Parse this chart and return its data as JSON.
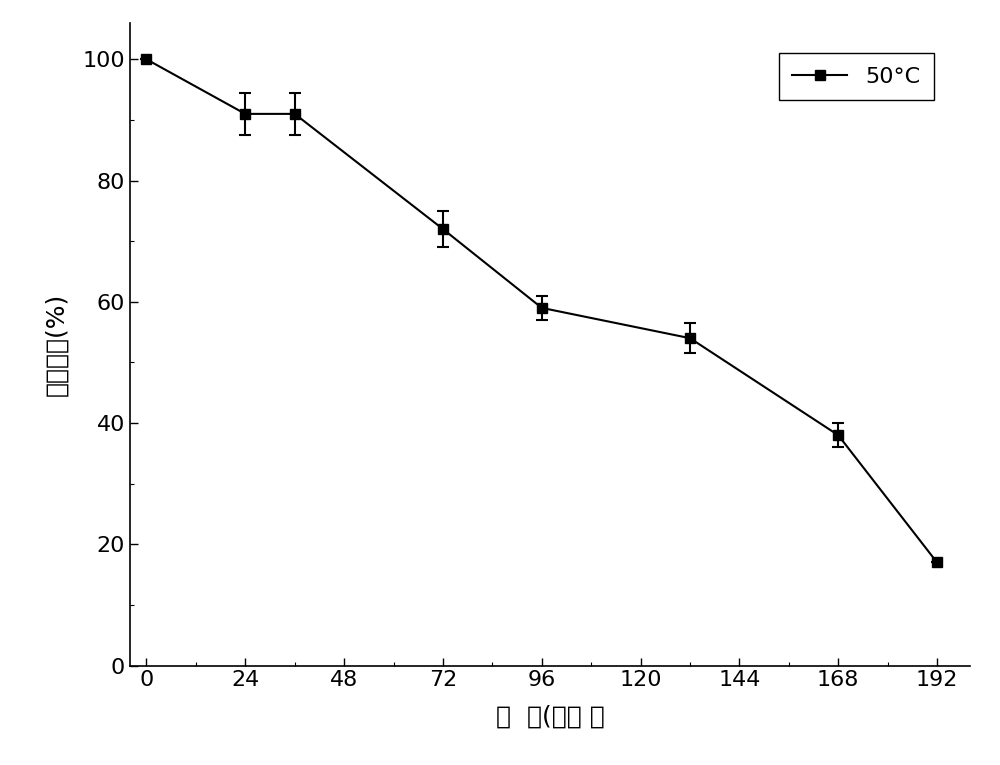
{
  "x": [
    0,
    24,
    36,
    72,
    96,
    132,
    168,
    192
  ],
  "y": [
    100,
    91,
    91,
    72,
    59,
    54,
    38,
    17
  ],
  "yerr": [
    0,
    3.5,
    3.5,
    3.0,
    2.0,
    2.5,
    2.0,
    0
  ],
  "color": "#000000",
  "marker": "s",
  "marker_size": 7,
  "line_style": "-",
  "line_width": 1.5,
  "xlabel": "时  间(小时 ）",
  "ylabel": "相对活性(%)",
  "legend_label": "50°C",
  "xlim": [
    -4,
    200
  ],
  "ylim": [
    0,
    106
  ],
  "xticks": [
    0,
    24,
    48,
    72,
    96,
    120,
    144,
    168,
    192
  ],
  "yticks": [
    0,
    20,
    40,
    60,
    80,
    100
  ],
  "background_color": "#ffffff",
  "label_fontsize": 18,
  "tick_fontsize": 16,
  "legend_fontsize": 16,
  "capsize": 4,
  "elinewidth": 1.5,
  "capthick": 1.5,
  "minor_tick_count": 1
}
